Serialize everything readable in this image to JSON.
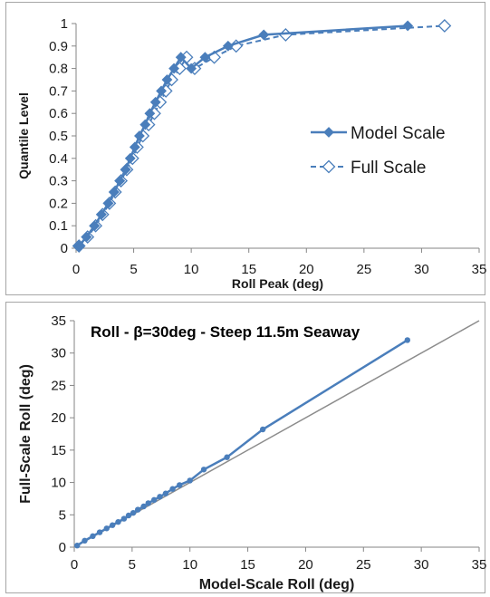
{
  "chart_data": [
    {
      "type": "line",
      "xlabel": "Roll Peak (deg)",
      "ylabel": "Quantile Level",
      "xlim": [
        0,
        35
      ],
      "ylim": [
        0,
        1
      ],
      "xticks": [
        "0",
        "5",
        "10",
        "15",
        "20",
        "25",
        "30",
        "35"
      ],
      "yticks": [
        "0",
        "0.1",
        "0.2",
        "0.3",
        "0.4",
        "0.5",
        "0.6",
        "0.7",
        "0.8",
        "0.9",
        "1"
      ],
      "grid": false,
      "legend_position": "right",
      "series": [
        {
          "name": "Model Scale",
          "color": "#4a7ebb",
          "marker": "filled-diamond",
          "line": "solid",
          "x": [
            0.25,
            0.9,
            1.6,
            2.2,
            2.8,
            3.3,
            3.8,
            4.3,
            4.7,
            5.1,
            5.5,
            6.0,
            6.4,
            6.9,
            7.4,
            7.9,
            8.5,
            9.1,
            10.0,
            11.2,
            13.2,
            16.3,
            28.8
          ],
          "y": [
            0.01,
            0.05,
            0.1,
            0.15,
            0.2,
            0.25,
            0.3,
            0.35,
            0.4,
            0.45,
            0.5,
            0.55,
            0.6,
            0.65,
            0.7,
            0.75,
            0.8,
            0.85,
            0.8,
            0.85,
            0.9,
            0.95,
            0.99
          ]
        },
        {
          "name": "Full Scale",
          "color": "#4a7ebb",
          "marker": "hollow-diamond",
          "line": "dashed",
          "x": [
            0.25,
            1.0,
            1.7,
            2.3,
            2.9,
            3.4,
            3.9,
            4.4,
            4.9,
            5.3,
            5.8,
            6.3,
            6.8,
            7.3,
            7.8,
            8.3,
            9.0,
            9.6,
            10.3,
            12.0,
            13.9,
            18.2,
            32.0
          ],
          "y": [
            0.01,
            0.05,
            0.1,
            0.15,
            0.2,
            0.25,
            0.3,
            0.35,
            0.4,
            0.45,
            0.5,
            0.55,
            0.6,
            0.65,
            0.7,
            0.75,
            0.8,
            0.85,
            0.8,
            0.85,
            0.9,
            0.95,
            0.99
          ]
        }
      ]
    },
    {
      "type": "scatter",
      "title": "Roll - β=30deg - Steep 11.5m Seaway",
      "xlabel": "Model-Scale Roll (deg)",
      "ylabel": "Full-Scale Roll (deg)",
      "xlim": [
        0,
        35
      ],
      "ylim": [
        0,
        35
      ],
      "xticks": [
        "0",
        "5",
        "10",
        "15",
        "20",
        "25",
        "30",
        "35"
      ],
      "yticks": [
        "0",
        "5",
        "10",
        "15",
        "20",
        "25",
        "30",
        "35"
      ],
      "grid": false,
      "series": [
        {
          "color": "#4a7ebb",
          "marker": "dot",
          "line": "solid",
          "x": [
            0.25,
            0.9,
            1.6,
            2.2,
            2.8,
            3.3,
            3.8,
            4.3,
            4.7,
            5.1,
            5.5,
            6.0,
            6.4,
            6.9,
            7.4,
            7.9,
            8.5,
            9.1,
            10.0,
            11.2,
            13.2,
            16.3,
            28.8
          ],
          "y": [
            0.25,
            1.0,
            1.7,
            2.3,
            2.9,
            3.4,
            3.9,
            4.4,
            4.9,
            5.3,
            5.8,
            6.3,
            6.8,
            7.3,
            7.8,
            8.3,
            9.0,
            9.6,
            10.3,
            12.0,
            13.9,
            18.2,
            32.0
          ]
        },
        {
          "color": "#8c8c8c",
          "line": "solid",
          "x": [
            0,
            35
          ],
          "y": [
            0,
            35
          ]
        }
      ]
    }
  ]
}
